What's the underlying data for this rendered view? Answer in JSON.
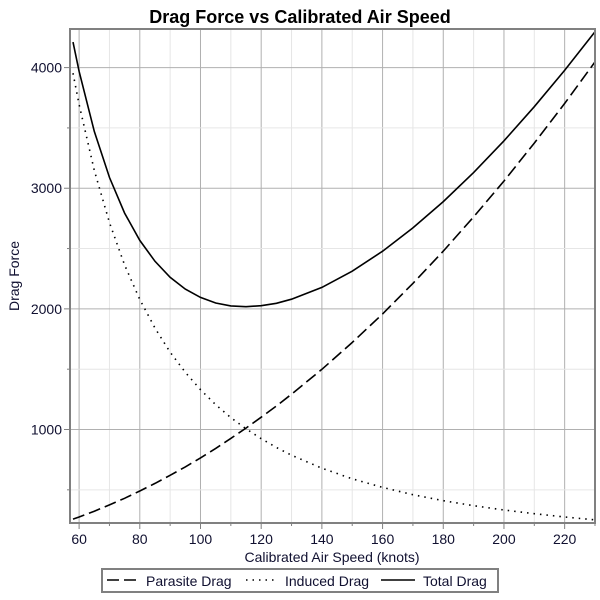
{
  "chart_data": {
    "type": "line",
    "title": "Drag Force vs Calibrated Air Speed",
    "xlabel": "Calibrated Air Speed (knots)",
    "ylabel": "Drag Force",
    "xlim": [
      57,
      230
    ],
    "ylim": [
      225,
      4320
    ],
    "xticks": [
      60,
      80,
      100,
      120,
      140,
      160,
      180,
      200,
      220
    ],
    "yticks": [
      1000,
      2000,
      3000,
      4000
    ],
    "grid": true,
    "legend_position": "bottom",
    "x": [
      58,
      60,
      65,
      70,
      75,
      80,
      85,
      90,
      95,
      100,
      105,
      110,
      115,
      120,
      125,
      130,
      140,
      150,
      160,
      170,
      180,
      190,
      200,
      210,
      220,
      230
    ],
    "series": [
      {
        "name": "Parasite Drag",
        "style": "dashed",
        "color": "#000000",
        "values": [
          257,
          275,
          323,
          375,
          430,
          490,
          553,
          620,
          690,
          765,
          843,
          926,
          1012,
          1102,
          1195,
          1293,
          1499,
          1721,
          1958,
          2211,
          2479,
          2762,
          3060,
          3374,
          3703,
          4047
        ]
      },
      {
        "name": "Induced Drag",
        "style": "dotted",
        "color": "#000000",
        "values": [
          3954,
          3694,
          3148,
          2714,
          2364,
          2078,
          1841,
          1642,
          1474,
          1330,
          1206,
          1099,
          1006,
          924,
          851,
          787,
          679,
          591,
          520,
          460,
          410,
          368,
          333,
          302,
          275,
          251
        ]
      },
      {
        "name": "Total Drag",
        "style": "solid",
        "color": "#000000",
        "values": [
          4211,
          3969,
          3471,
          3089,
          2794,
          2568,
          2394,
          2262,
          2164,
          2095,
          2049,
          2025,
          2018,
          2026,
          2046,
          2080,
          2178,
          2312,
          2478,
          2671,
          2889,
          3130,
          3393,
          3676,
          3978,
          4298
        ]
      }
    ]
  }
}
